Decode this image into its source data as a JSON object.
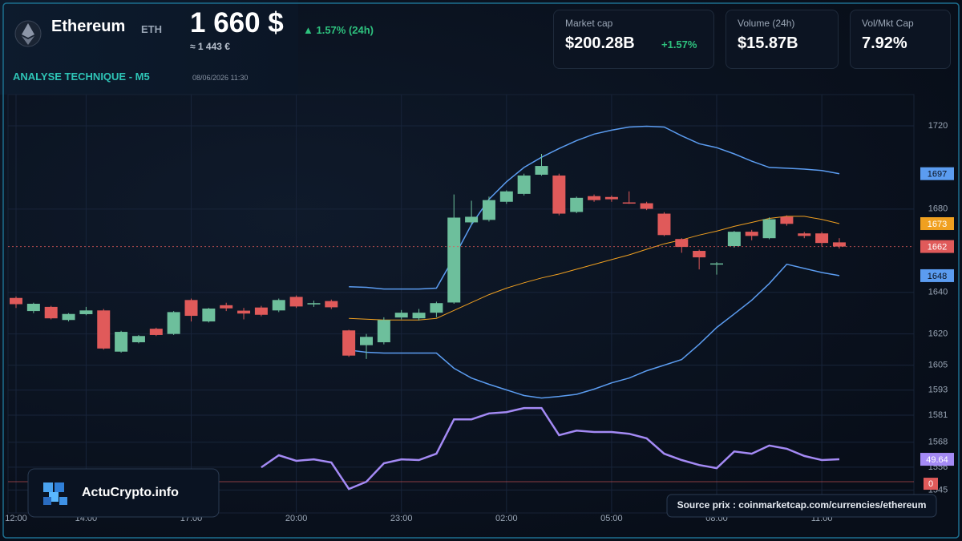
{
  "header": {
    "name": "Ethereum",
    "symbol": "ETH",
    "price": "1 660 $",
    "change": "▲ 1.57% (24h)",
    "price_eur": "≈ 1 443 €",
    "analysis": "ANALYSE TECHNIQUE - M5",
    "date": "08/06/2026 11:30",
    "stats": [
      {
        "label": "Market cap",
        "value": "$200.28B",
        "change": "+1.57%"
      },
      {
        "label": "Volume (24h)",
        "value": "$15.87B"
      },
      {
        "label": "Vol/Mkt Cap",
        "value": "7.92%"
      }
    ]
  },
  "footer": {
    "brand": "ActuCrypto.info",
    "source": "Source prix : coinmarketcap.com/currencies/ethereum"
  },
  "chart_data": {
    "type": "candlestick",
    "categories": [
      "12:00",
      null,
      null,
      null,
      "14:00",
      null,
      null,
      null,
      null,
      null,
      "17:00",
      null,
      null,
      null,
      null,
      null,
      "20:00",
      null,
      null,
      null,
      null,
      null,
      "23:00",
      null,
      null,
      null,
      null,
      null,
      "02:00",
      null,
      null,
      null,
      null,
      null,
      "05:00",
      null,
      null,
      null,
      null,
      null,
      "08:00",
      null,
      null,
      null,
      null,
      null,
      "11:00",
      null
    ],
    "open": [
      1637.3,
      1631,
      1633,
      1626.7,
      1629.5,
      1631.3,
      1611.5,
      1616,
      1622.5,
      1620,
      1636.3,
      1626,
      1633.8,
      1631.2,
      1632.7,
      1631.3,
      1637.8,
      1634.2,
      1635.8,
      1621.7,
      1614.6,
      1616,
      1627.9,
      1627.5,
      1630.2,
      1635.1,
      1673.6,
      1674.8,
      1683.5,
      1687.3,
      1696.5,
      1696.1,
      1678.6,
      1686.2,
      1685.8,
      1683.2,
      1682.8,
      1677.8,
      1665.6,
      1659.9,
      1653.6,
      1662.2,
      1669.1,
      1666,
      1676.3,
      1668.3,
      1668.3,
      1664
    ],
    "high": [
      1638,
      1635,
      1633.5,
      1630,
      1633,
      1632,
      1621.5,
      1619.5,
      1623,
      1631,
      1637,
      1632.5,
      1635,
      1632.5,
      1633.5,
      1637,
      1638.5,
      1636,
      1636.5,
      1622,
      1620,
      1628,
      1631.5,
      1632,
      1635.5,
      1687,
      1684,
      1686,
      1689,
      1697,
      1706.5,
      1697,
      1686,
      1687,
      1686.5,
      1688.5,
      1683.5,
      1678.5,
      1666,
      1660.5,
      1654.5,
      1669.5,
      1670,
      1676,
      1677,
      1669,
      1669,
      1666
    ],
    "low": [
      1632.5,
      1630,
      1627,
      1626,
      1629,
      1612.5,
      1611,
      1615.5,
      1619,
      1619.5,
      1626,
      1625.5,
      1631,
      1627,
      1628.5,
      1630.5,
      1632.5,
      1633,
      1632,
      1609,
      1608,
      1615,
      1627,
      1626.5,
      1628,
      1634.5,
      1672.5,
      1674,
      1682.5,
      1686.5,
      1696,
      1677,
      1678,
      1683.5,
      1683.5,
      1682.5,
      1679.5,
      1667,
      1659,
      1651,
      1648.5,
      1661.5,
      1665,
      1665.5,
      1672,
      1666,
      1662,
      1661
    ],
    "close": [
      1634.3,
      1634.5,
      1627.5,
      1629.6,
      1631.3,
      1613,
      1621,
      1619,
      1619.5,
      1630.5,
      1628.7,
      1632.2,
      1632.3,
      1629.8,
      1629.2,
      1636.3,
      1633.2,
      1634.8,
      1632.8,
      1609.6,
      1618.6,
      1626.7,
      1630.2,
      1630.2,
      1634.8,
      1675.9,
      1676.3,
      1684.3,
      1688.5,
      1696.1,
      1700.7,
      1677.8,
      1685.4,
      1684.3,
      1684.7,
      1683,
      1680.1,
      1667.5,
      1661.8,
      1656.8,
      1653.9,
      1669.1,
      1667.1,
      1675.1,
      1672.9,
      1667.1,
      1663.7,
      1662
    ],
    "up_color": "#6dbf9c",
    "down_color": "#e05a5a",
    "bollinger": {
      "band_color": "#5b9cf0",
      "middle_color": "#f0a020",
      "upper": [
        null,
        null,
        null,
        null,
        null,
        null,
        null,
        null,
        null,
        null,
        null,
        null,
        null,
        null,
        null,
        null,
        null,
        null,
        null,
        1642.7,
        1642.4,
        1641.6,
        1641.6,
        1641.6,
        1642,
        1656.8,
        1672.5,
        1684.7,
        1693.1,
        1700,
        1704.9,
        1709.1,
        1712.9,
        1716,
        1717.9,
        1719.4,
        1719.8,
        1719.4,
        1715.2,
        1711.4,
        1709.5,
        1706.5,
        1703,
        1700,
        1699.6,
        1699.2,
        1698.5,
        1697
      ],
      "middle": [
        null,
        null,
        null,
        null,
        null,
        null,
        null,
        null,
        null,
        null,
        null,
        null,
        null,
        null,
        null,
        null,
        null,
        null,
        null,
        1627.5,
        1627.1,
        1626.7,
        1626.7,
        1626.7,
        1627.5,
        1631.3,
        1635.1,
        1638.9,
        1642,
        1644.6,
        1646.9,
        1648.8,
        1651.1,
        1653.4,
        1655.7,
        1658,
        1660.7,
        1663.3,
        1665.2,
        1667.5,
        1669.4,
        1671.7,
        1673.6,
        1675.5,
        1676.5,
        1676.5,
        1675,
        1673
      ],
      "lower": [
        null,
        null,
        null,
        null,
        null,
        null,
        null,
        null,
        null,
        null,
        null,
        null,
        null,
        null,
        null,
        null,
        null,
        null,
        null,
        1612.3,
        1611.2,
        1610.8,
        1610.8,
        1610.8,
        1610.8,
        1603.5,
        1598.8,
        1595.8,
        1593.1,
        1590.4,
        1589.2,
        1590,
        1591,
        1593.5,
        1596.5,
        1598.8,
        1602.3,
        1605,
        1607.7,
        1615,
        1623.1,
        1629.6,
        1636.2,
        1644.2,
        1653.5,
        1651.5,
        1649.5,
        1648
      ]
    },
    "indicator": {
      "color": "#a48af5",
      "axis": "y2",
      "values": [
        null,
        null,
        null,
        null,
        null,
        null,
        null,
        null,
        null,
        null,
        null,
        null,
        null,
        null,
        31.9,
        58.5,
        46.1,
        49.6,
        42.6,
        -16,
        0,
        40.8,
        49.6,
        47.9,
        62,
        138,
        138,
        151,
        154,
        163,
        163,
        103,
        113,
        110,
        110,
        106,
        96,
        62,
        48,
        37,
        30,
        67,
        62,
        80,
        73,
        57,
        48,
        49.64
      ]
    },
    "ylim": [
      1534,
      1735
    ],
    "yticks": [
      1545,
      1556,
      1568,
      1581,
      1593,
      1605,
      1620,
      1640,
      1680,
      1720
    ],
    "y2lim": [
      -69,
      856
    ],
    "y2ticks": [
      0
    ],
    "grid": true
  }
}
